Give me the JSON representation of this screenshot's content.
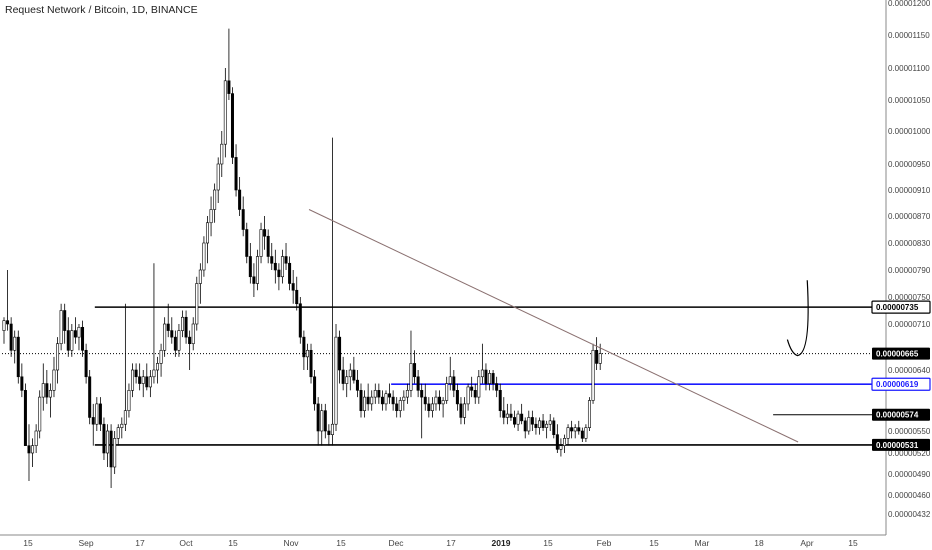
{
  "title": "Request Network / Bitcoin, 1D, BINANCE",
  "chart_data": {
    "type": "candlestick",
    "symbol": "Request Network / Bitcoin",
    "interval": "1D",
    "exchange": "BINANCE",
    "y_ticks": [
      "0.00001200",
      "0.00001150",
      "0.00001100",
      "0.00001050",
      "0.00001000",
      "0.00000950",
      "0.00000910",
      "0.00000870",
      "0.00000830",
      "0.00000790",
      "0.00000750",
      "0.00000710",
      "0.00000640",
      "0.00000550",
      "0.00000520",
      "0.00000490",
      "0.00000460",
      "0.00000432"
    ],
    "x_ticks": [
      {
        "label": "15",
        "bold": false
      },
      {
        "label": "Sep",
        "bold": false
      },
      {
        "label": "17",
        "bold": false
      },
      {
        "label": "Oct",
        "bold": false
      },
      {
        "label": "15",
        "bold": false
      },
      {
        "label": "Nov",
        "bold": false
      },
      {
        "label": "15",
        "bold": false
      },
      {
        "label": "Dec",
        "bold": false
      },
      {
        "label": "17",
        "bold": false
      },
      {
        "label": "2019",
        "bold": true
      },
      {
        "label": "15",
        "bold": false
      },
      {
        "label": "Feb",
        "bold": false
      },
      {
        "label": "15",
        "bold": false
      },
      {
        "label": "Mar",
        "bold": false
      },
      {
        "label": "18",
        "bold": false
      },
      {
        "label": "Apr",
        "bold": false
      },
      {
        "label": "15",
        "bold": false
      }
    ],
    "price_tags": [
      {
        "label": "0.00000735",
        "style": "outlined",
        "color": "#000000",
        "value": 7.35e-06
      },
      {
        "label": "0.00000665",
        "style": "filled",
        "color": "#000000",
        "value": 6.65e-06
      },
      {
        "label": "0.00000619",
        "style": "outlined",
        "color": "#1a1aff",
        "value": 6.19e-06
      },
      {
        "label": "0.00000574",
        "style": "filled",
        "color": "#000000",
        "value": 5.74e-06
      },
      {
        "label": "0.00000531",
        "style": "filled",
        "color": "#000000",
        "value": 5.31e-06
      }
    ],
    "horizontal_lines": [
      {
        "value": 7.35e-06,
        "color": "#000000",
        "style": "solid",
        "from": "2018-08-27"
      },
      {
        "value": 5.31e-06,
        "color": "#000000",
        "style": "solid",
        "from": "2018-08-27"
      },
      {
        "value": 6.19e-06,
        "color": "#1a1aff",
        "style": "solid",
        "from": "2018-11-18"
      },
      {
        "value": 5.74e-06,
        "color": "#000000",
        "style": "thin",
        "from": "2019-03-05"
      },
      {
        "value": 6.65e-06,
        "color": "#000000",
        "style": "dotted",
        "from": "2018-08-01"
      }
    ],
    "trendline": {
      "from": {
        "date": "2018-10-26",
        "value": 8.8e-06
      },
      "to": {
        "date": "2019-03-12",
        "value": 5.35e-06
      },
      "color": "#8a7070"
    },
    "projection_curve": {
      "from": {
        "date": "2019-03-09",
        "value": 6.68e-06
      },
      "to": {
        "date": "2019-03-14",
        "value": 7.6e-06
      }
    },
    "candles": [
      [
        7e-06,
        7.2e-06,
        6.8e-06,
        7.15e-06
      ],
      [
        7.15e-06,
        7.9e-06,
        7e-06,
        7.1e-06
      ],
      [
        7.1e-06,
        7.2e-06,
        6.6e-06,
        6.7e-06
      ],
      [
        6.7e-06,
        7e-06,
        6.5e-06,
        6.9e-06
      ],
      [
        6.9e-06,
        7e-06,
        6.2e-06,
        6.3e-06
      ],
      [
        6.3e-06,
        6.5e-06,
        6e-06,
        6.1e-06
      ],
      [
        6.1e-06,
        6.2e-06,
        5.3e-06,
        5.3e-06
      ],
      [
        5.3e-06,
        5.6e-06,
        4.8e-06,
        5.2e-06
      ],
      [
        5.2e-06,
        5.4e-06,
        5e-06,
        5.3e-06
      ],
      [
        5.3e-06,
        5.6e-06,
        5.2e-06,
        5.5e-06
      ],
      [
        5.5e-06,
        6.1e-06,
        5.4e-06,
        6e-06
      ],
      [
        6e-06,
        6.5e-06,
        5.8e-06,
        6.2e-06
      ],
      [
        6.2e-06,
        6.4e-06,
        5.9e-06,
        6e-06
      ],
      [
        6e-06,
        6.2e-06,
        5.7e-06,
        6.1e-06
      ],
      [
        6.1e-06,
        6.6e-06,
        6e-06,
        6.4e-06
      ],
      [
        6.4e-06,
        6.9e-06,
        6.2e-06,
        6.8e-06
      ],
      [
        6.8e-06,
        7.4e-06,
        6.7e-06,
        7.3e-06
      ],
      [
        7.3e-06,
        7.4e-06,
        6.8e-06,
        7e-06
      ],
      [
        7e-06,
        7.2e-06,
        6.6e-06,
        6.7e-06
      ],
      [
        6.7e-06,
        7.1e-06,
        6.6e-06,
        7e-06
      ],
      [
        7e-06,
        7.2e-06,
        6.8e-06,
        6.9e-06
      ],
      [
        6.9e-06,
        7.1e-06,
        6.7e-06,
        7.05e-06
      ],
      [
        7.05e-06,
        7.15e-06,
        6.6e-06,
        6.7e-06
      ],
      [
        6.7e-06,
        6.8e-06,
        6.2e-06,
        6.3e-06
      ],
      [
        6.3e-06,
        6.4e-06,
        5.6e-06,
        5.7e-06
      ],
      [
        5.7e-06,
        5.9e-06,
        5.3e-06,
        5.6e-06
      ],
      [
        5.6e-06,
        6e-06,
        5.5e-06,
        5.9e-06
      ],
      [
        5.9e-06,
        6e-06,
        5.5e-06,
        5.6e-06
      ],
      [
        5.6e-06,
        5.7e-06,
        5.1e-06,
        5.2e-06
      ],
      [
        5.2e-06,
        5.6e-06,
        5e-06,
        5.5e-06
      ],
      [
        5.5e-06,
        5.6e-06,
        4.7e-06,
        5e-06
      ],
      [
        5e-06,
        5.5e-06,
        4.9e-06,
        5.4e-06
      ],
      [
        5.4e-06,
        5.6e-06,
        5.3e-06,
        5.55e-06
      ],
      [
        5.55e-06,
        5.7e-06,
        5.4e-06,
        5.6e-06
      ],
      [
        5.6e-06,
        7.4e-06,
        5.5e-06,
        5.8e-06
      ],
      [
        5.8e-06,
        6.2e-06,
        5.7e-06,
        6.1e-06
      ],
      [
        6.1e-06,
        6.5e-06,
        6e-06,
        6.4e-06
      ],
      [
        6.4e-06,
        6.5e-06,
        6.2e-06,
        6.3e-06
      ],
      [
        6.3e-06,
        6.5e-06,
        6.1e-06,
        6.2e-06
      ],
      [
        6.2e-06,
        6.4e-06,
        6e-06,
        6.3e-06
      ],
      [
        6.3e-06,
        6.5e-06,
        6.1e-06,
        6.15e-06
      ],
      [
        6.15e-06,
        6.4e-06,
        6e-06,
        6.3e-06
      ],
      [
        6.3e-06,
        8e-06,
        6.2e-06,
        6.4e-06
      ],
      [
        6.4e-06,
        6.6e-06,
        6.2e-06,
        6.5e-06
      ],
      [
        6.5e-06,
        6.8e-06,
        6.3e-06,
        6.7e-06
      ],
      [
        6.7e-06,
        7.2e-06,
        6.6e-06,
        7.1e-06
      ],
      [
        7.1e-06,
        7.4e-06,
        6.9e-06,
        7e-06
      ],
      [
        7e-06,
        7.2e-06,
        6.8e-06,
        6.9e-06
      ],
      [
        6.9e-06,
        7e-06,
        6.6e-06,
        6.7e-06
      ],
      [
        6.7e-06,
        7.1e-06,
        6.6e-06,
        7e-06
      ],
      [
        7e-06,
        7.3e-06,
        6.9e-06,
        7.2e-06
      ],
      [
        7.2e-06,
        7.3e-06,
        6.8e-06,
        6.9e-06
      ],
      [
        6.9e-06,
        7e-06,
        6.4e-06,
        6.8e-06
      ],
      [
        6.8e-06,
        7.2e-06,
        6.7e-06,
        7.1e-06
      ],
      [
        7.1e-06,
        7.8e-06,
        7e-06,
        7.7e-06
      ],
      [
        7.7e-06,
        8e-06,
        7.4e-06,
        7.9e-06
      ],
      [
        7.9e-06,
        8.4e-06,
        7.8e-06,
        8.3e-06
      ],
      [
        8.3e-06,
        8.7e-06,
        8e-06,
        8.6e-06
      ],
      [
        8.6e-06,
        9e-06,
        8.4e-06,
        8.8e-06
      ],
      [
        8.8e-06,
        9.2e-06,
        8.6e-06,
        9.1e-06
      ],
      [
        9.1e-06,
        9.6e-06,
        8.9e-06,
        9.5e-06
      ],
      [
        9.5e-06,
        1e-05,
        9.3e-06,
        9.8e-06
      ],
      [
        9.8e-06,
        1.1e-05,
        9.6e-06,
        1.08e-05
      ],
      [
        1.08e-05,
        1.16e-05,
        1.05e-05,
        1.06e-05
      ],
      [
        1.06e-05,
        1.07e-05,
        9.5e-06,
        9.6e-06
      ],
      [
        9.6e-06,
        9.8e-06,
        9e-06,
        9.1e-06
      ],
      [
        9.1e-06,
        9.3e-06,
        8.7e-06,
        8.8e-06
      ],
      [
        8.8e-06,
        9e-06,
        8.4e-06,
        8.5e-06
      ],
      [
        8.5e-06,
        8.6e-06,
        8e-06,
        8.1e-06
      ],
      [
        8.1e-06,
        8.3e-06,
        7.7e-06,
        7.8e-06
      ],
      [
        7.8e-06,
        8e-06,
        7.5e-06,
        7.7e-06
      ],
      [
        7.7e-06,
        8.2e-06,
        7.6e-06,
        8.1e-06
      ],
      [
        8.1e-06,
        8.6e-06,
        8e-06,
        8.5e-06
      ],
      [
        8.5e-06,
        8.7e-06,
        8.2e-06,
        8.4e-06
      ],
      [
        8.4e-06,
        8.5e-06,
        8e-06,
        8.1e-06
      ],
      [
        8.1e-06,
        8.3e-06,
        7.9e-06,
        8e-06
      ],
      [
        8e-06,
        8.2e-06,
        7.7e-06,
        7.9e-06
      ],
      [
        7.9e-06,
        8e-06,
        7.6e-06,
        7.8e-06
      ],
      [
        7.8e-06,
        8.2e-06,
        7.7e-06,
        8.1e-06
      ],
      [
        8.1e-06,
        8.3e-06,
        7.9e-06,
        8e-06
      ],
      [
        8e-06,
        8.1e-06,
        7.6e-06,
        7.7e-06
      ],
      [
        7.7e-06,
        7.9e-06,
        7.4e-06,
        7.6e-06
      ],
      [
        7.6e-06,
        7.8e-06,
        7.3e-06,
        7.4e-06
      ],
      [
        7.4e-06,
        7.5e-06,
        6.8e-06,
        6.9e-06
      ],
      [
        6.9e-06,
        7e-06,
        6.4e-06,
        6.6e-06
      ],
      [
        6.6e-06,
        6.8e-06,
        6.4e-06,
        6.7e-06
      ],
      [
        6.7e-06,
        6.8e-06,
        6.2e-06,
        6.3e-06
      ],
      [
        6.3e-06,
        6.4e-06,
        5.8e-06,
        5.9e-06
      ],
      [
        5.9e-06,
        6e-06,
        5.3e-06,
        5.5e-06
      ],
      [
        5.5e-06,
        5.9e-06,
        5.3e-06,
        5.8e-06
      ],
      [
        5.8e-06,
        5.9e-06,
        5.4e-06,
        5.5e-06
      ],
      [
        5.5e-06,
        5.6e-06,
        5.3e-06,
        5.45e-06
      ],
      [
        5.45e-06,
        9.9e-06,
        5.3e-06,
        5.6e-06
      ],
      [
        5.6e-06,
        7.1e-06,
        5.5e-06,
        6.9e-06
      ],
      [
        6.9e-06,
        7e-06,
        6.2e-06,
        6.4e-06
      ],
      [
        6.4e-06,
        6.6e-06,
        6.1e-06,
        6.2e-06
      ],
      [
        6.2e-06,
        6.4e-06,
        6e-06,
        6.3e-06
      ],
      [
        6.3e-06,
        6.5e-06,
        6.1e-06,
        6.4e-06
      ],
      [
        6.4e-06,
        6.6e-06,
        6.2e-06,
        6.25e-06
      ],
      [
        6.25e-06,
        6.4e-06,
        6e-06,
        6.1e-06
      ],
      [
        6.1e-06,
        6.2e-06,
        5.7e-06,
        5.8e-06
      ],
      [
        5.8e-06,
        6.1e-06,
        5.7e-06,
        6e-06
      ],
      [
        6e-06,
        6.2e-06,
        5.8e-06,
        5.9e-06
      ],
      [
        5.9e-06,
        6.1e-06,
        5.8e-06,
        6e-06
      ],
      [
        6e-06,
        6.2e-06,
        5.9e-06,
        6.1e-06
      ],
      [
        6.1e-06,
        6.2e-06,
        5.9e-06,
        6e-06
      ],
      [
        6e-06,
        6.1e-06,
        5.8e-06,
        5.9e-06
      ],
      [
        5.9e-06,
        6.1e-06,
        5.8e-06,
        6.05e-06
      ],
      [
        6.05e-06,
        6.2e-06,
        5.9e-06,
        6e-06
      ],
      [
        6e-06,
        6.1e-06,
        5.8e-06,
        5.9e-06
      ],
      [
        5.9e-06,
        6e-06,
        5.7e-06,
        5.8e-06
      ],
      [
        5.8e-06,
        6e-06,
        5.7e-06,
        5.95e-06
      ],
      [
        5.95e-06,
        6.1e-06,
        5.8e-06,
        6e-06
      ],
      [
        6e-06,
        6.2e-06,
        5.9e-06,
        6.1e-06
      ],
      [
        6.1e-06,
        7e-06,
        6e-06,
        6.5e-06
      ],
      [
        6.5e-06,
        6.7e-06,
        6.2e-06,
        6.3e-06
      ],
      [
        6.3e-06,
        6.4e-06,
        6e-06,
        6.1e-06
      ],
      [
        6.1e-06,
        6.2e-06,
        5.4e-06,
        6e-06
      ],
      [
        6e-06,
        6.2e-06,
        5.8e-06,
        5.9e-06
      ],
      [
        5.9e-06,
        6e-06,
        5.7e-06,
        5.8e-06
      ],
      [
        5.8e-06,
        6e-06,
        5.7e-06,
        5.9e-06
      ],
      [
        5.9e-06,
        6.1e-06,
        5.8e-06,
        6e-06
      ],
      [
        6e-06,
        6.1e-06,
        5.8e-06,
        5.9e-06
      ],
      [
        5.9e-06,
        6e-06,
        5.7e-06,
        5.95e-06
      ],
      [
        5.95e-06,
        6.3e-06,
        5.9e-06,
        6.2e-06
      ],
      [
        6.2e-06,
        6.6e-06,
        6.1e-06,
        6.3e-06
      ],
      [
        6.3e-06,
        6.4e-06,
        6e-06,
        6.1e-06
      ],
      [
        6.1e-06,
        6.2e-06,
        5.8e-06,
        5.9e-06
      ],
      [
        5.9e-06,
        6e-06,
        5.6e-06,
        5.7e-06
      ],
      [
        5.7e-06,
        6e-06,
        5.6e-06,
        5.9e-06
      ],
      [
        5.9e-06,
        6.2e-06,
        5.8e-06,
        6.15e-06
      ],
      [
        6.15e-06,
        6.3e-06,
        6e-06,
        6.1e-06
      ],
      [
        6.1e-06,
        6.2e-06,
        5.9e-06,
        6e-06
      ],
      [
        6e-06,
        6.4e-06,
        5.9e-06,
        6.3e-06
      ],
      [
        6.3e-06,
        6.8e-06,
        6.2e-06,
        6.4e-06
      ],
      [
        6.4e-06,
        6.5e-06,
        6.1e-06,
        6.2e-06
      ],
      [
        6.2e-06,
        6.4e-06,
        6.1e-06,
        6.35e-06
      ],
      [
        6.35e-06,
        6.4e-06,
        6.1e-06,
        6.2e-06
      ],
      [
        6.2e-06,
        6.3e-06,
        6e-06,
        6.1e-06
      ],
      [
        6.1e-06,
        6.2e-06,
        5.7e-06,
        5.8e-06
      ],
      [
        5.8e-06,
        6e-06,
        5.6e-06,
        5.7e-06
      ],
      [
        5.7e-06,
        5.9e-06,
        5.6e-06,
        5.75e-06
      ],
      [
        5.75e-06,
        5.9e-06,
        5.65e-06,
        5.7e-06
      ],
      [
        5.7e-06,
        5.8e-06,
        5.55e-06,
        5.6e-06
      ],
      [
        5.6e-06,
        5.8e-06,
        5.5e-06,
        5.75e-06
      ],
      [
        5.75e-06,
        5.9e-06,
        5.6e-06,
        5.65e-06
      ],
      [
        5.65e-06,
        5.7e-06,
        5.4e-06,
        5.5e-06
      ],
      [
        5.5e-06,
        5.8e-06,
        5.45e-06,
        5.7e-06
      ],
      [
        5.7e-06,
        5.8e-06,
        5.5e-06,
        5.6e-06
      ],
      [
        5.6e-06,
        5.7e-06,
        5.45e-06,
        5.55e-06
      ],
      [
        5.55e-06,
        5.7e-06,
        5.45e-06,
        5.65e-06
      ],
      [
        5.65e-06,
        5.75e-06,
        5.5e-06,
        5.55e-06
      ],
      [
        5.55e-06,
        5.65e-06,
        5.4e-06,
        5.6e-06
      ],
      [
        5.6e-06,
        5.75e-06,
        5.5e-06,
        5.65e-06
      ],
      [
        5.65e-06,
        5.7e-06,
        5.4e-06,
        5.45e-06
      ],
      [
        5.45e-06,
        5.6e-06,
        5.2e-06,
        5.25e-06
      ],
      [
        5.25e-06,
        5.4e-06,
        5.15e-06,
        5.3e-06
      ],
      [
        5.3e-06,
        5.45e-06,
        5.2e-06,
        5.4e-06
      ],
      [
        5.4e-06,
        5.6e-06,
        5.3e-06,
        5.55e-06
      ],
      [
        5.55e-06,
        5.65e-06,
        5.4e-06,
        5.5e-06
      ],
      [
        5.5e-06,
        5.6e-06,
        5.4e-06,
        5.55e-06
      ],
      [
        5.55e-06,
        5.65e-06,
        5.45e-06,
        5.5e-06
      ],
      [
        5.5e-06,
        5.55e-06,
        5.35e-06,
        5.4e-06
      ],
      [
        5.4e-06,
        5.6e-06,
        5.35e-06,
        5.55e-06
      ],
      [
        5.55e-06,
        6e-06,
        5.5e-06,
        5.95e-06
      ],
      [
        5.95e-06,
        6.8e-06,
        5.9e-06,
        6.7e-06
      ],
      [
        6.7e-06,
        6.9e-06,
        6.4e-06,
        6.5e-06
      ],
      [
        6.5e-06,
        6.8e-06,
        6.4e-06,
        6.65e-06
      ]
    ]
  }
}
